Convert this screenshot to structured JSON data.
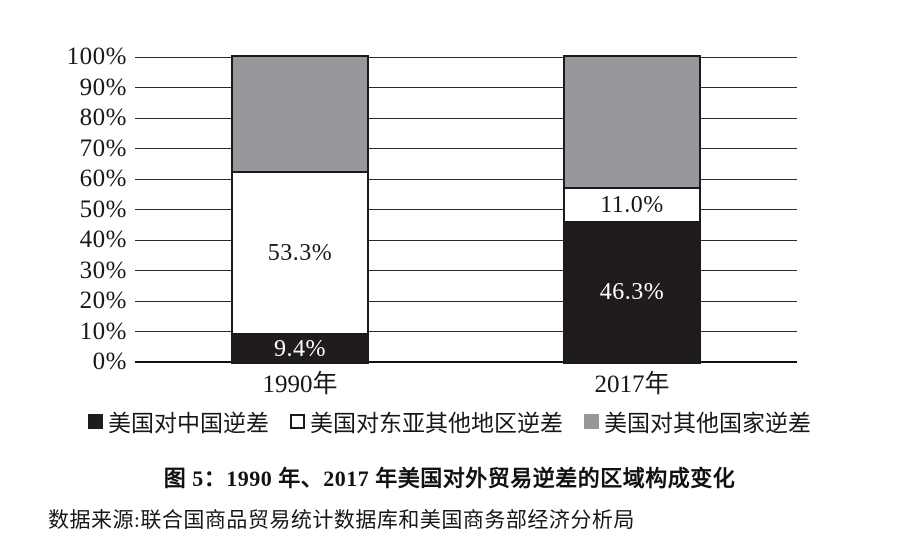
{
  "figure": {
    "title": "图 5：1990 年、2017 年美国对外贸易逆差的区域构成变化",
    "source": "数据来源:联合国商品贸易统计数据库和美国商务部经济分析局"
  },
  "chart_data": {
    "type": "bar",
    "stacked": true,
    "title": "图 5：1990 年、2017 年美国对外贸易逆差的区域构成变化",
    "categories": [
      "1990年",
      "2017年"
    ],
    "series": [
      {
        "name": "美国对中国逆差",
        "values": [
          9.4,
          46.3
        ],
        "data_labels": [
          "9.4%",
          "46.3%"
        ],
        "color": "#201c1d",
        "label_color": "#ffffff",
        "legend_swatch": "filled-black"
      },
      {
        "name": "美国对东亚其他地区逆差",
        "values": [
          53.3,
          11.0
        ],
        "data_labels": [
          "53.3%",
          "11.0%"
        ],
        "color": "#ffffff",
        "label_color": "#1a1617",
        "legend_swatch": "outlined-white"
      },
      {
        "name": "美国对其他国家逆差",
        "values": [
          37.3,
          42.7
        ],
        "data_labels": [
          "",
          ""
        ],
        "color": "#97989b",
        "label_color": "#1a1617",
        "legend_swatch": "filled-gray"
      }
    ],
    "ylim": [
      0,
      100
    ],
    "ytick_labels": [
      "100%",
      "90%",
      "80%",
      "70%",
      "60%",
      "50%",
      "40%",
      "30%",
      "20%",
      "10%",
      "0%"
    ],
    "grid": true,
    "legend_position": "bottom",
    "colors": {
      "black_segment": "#201c1d",
      "white_segment": "#ffffff",
      "gray_segment": "#97989b",
      "gridline": "#2b2b2b"
    }
  }
}
